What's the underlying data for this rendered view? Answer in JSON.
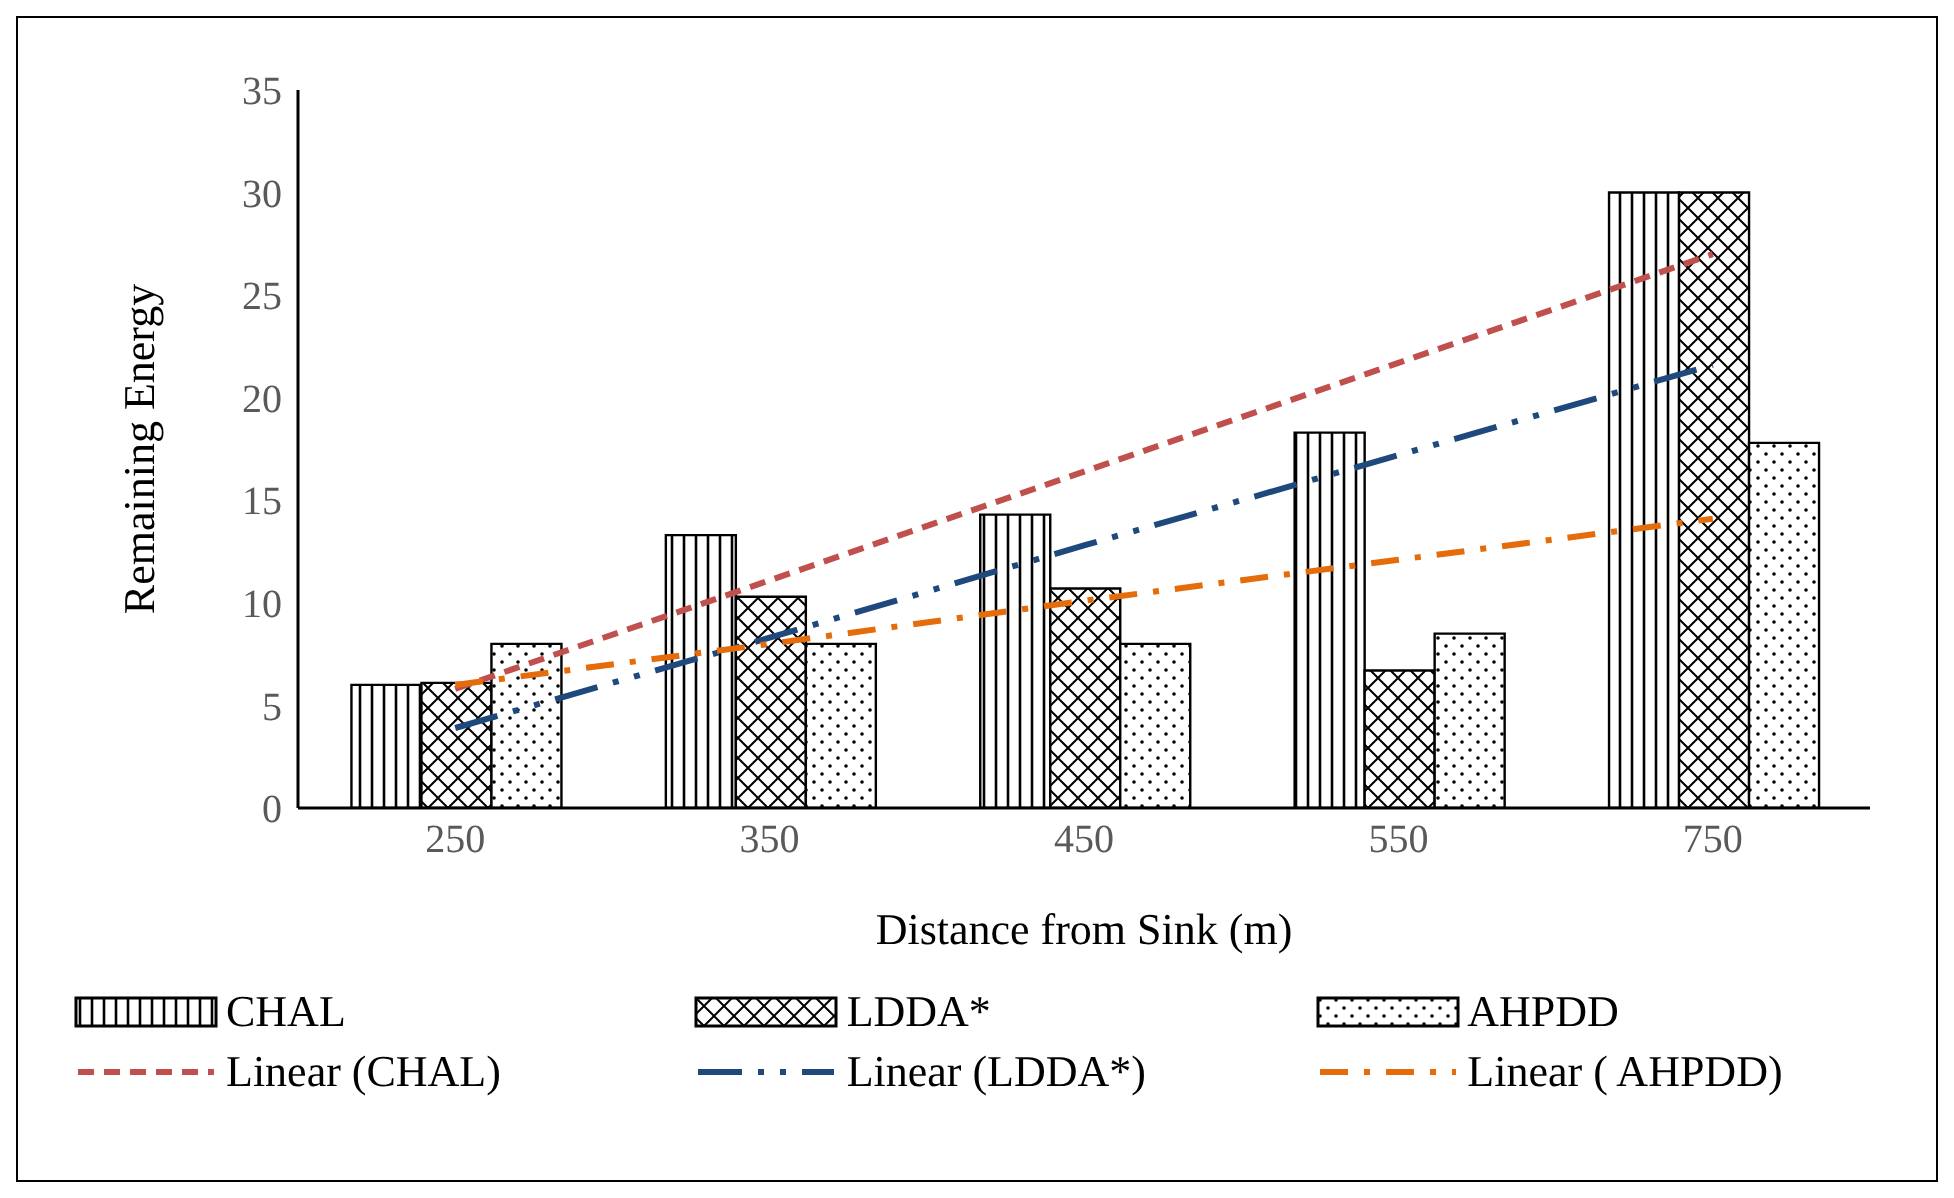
{
  "chart_data": {
    "type": "bar",
    "xlabel": "Distance from Sink (m)",
    "ylabel": "Remaining Energy",
    "categories": [
      "250",
      "350",
      "450",
      "550",
      "750"
    ],
    "series": [
      {
        "name": "CHAL",
        "color": "#000000",
        "values": [
          6,
          13.3,
          14.3,
          18.3,
          30
        ]
      },
      {
        "name": "LDDA*",
        "color": "#000000",
        "values": [
          6.1,
          10.3,
          10.7,
          6.7,
          30
        ]
      },
      {
        "name": "AHPDD",
        "color": "#000000",
        "values": [
          8,
          8,
          8,
          8.5,
          17.8
        ]
      },
      {
        "name": "Linear (CHAL)",
        "type": "line",
        "color": "#c0504d",
        "line_style": "dashed",
        "values": [
          5.8,
          11.1,
          16.4,
          21.7,
          27
        ]
      },
      {
        "name": "Linear (LDDA*)",
        "type": "line",
        "color": "#1f497d",
        "line_style": "dashed",
        "values": [
          3.9,
          8.3,
          12.8,
          17.2,
          21.6
        ]
      },
      {
        "name": "Linear ( AHPDD)",
        "type": "line",
        "color": "#e46c0a",
        "line_style": "dashed",
        "values": [
          6,
          8,
          10.1,
          12.1,
          14.1
        ]
      }
    ],
    "ylim": [
      0,
      35
    ],
    "yticks": [
      0,
      5,
      10,
      15,
      20,
      25,
      30,
      35
    ],
    "legend": "bottom",
    "marker": "none"
  }
}
